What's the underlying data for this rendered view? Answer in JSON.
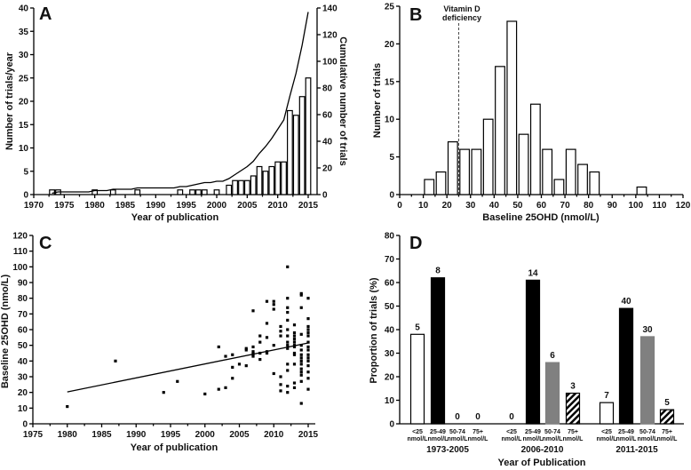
{
  "chart_data": [
    {
      "panel": "A",
      "type": "bar+line",
      "xlabel": "Year of publication",
      "ylabel": "Number of trials/year",
      "y2label": "Cumulative number of trials",
      "xlim": [
        1970,
        2016
      ],
      "xticks": [
        1970,
        1975,
        1980,
        1985,
        1990,
        1995,
        2000,
        2005,
        2010,
        2015
      ],
      "ylim": [
        0,
        40
      ],
      "yticks": [
        0,
        5,
        10,
        15,
        20,
        25,
        30,
        35,
        40
      ],
      "y2lim": [
        0,
        140
      ],
      "y2ticks": [
        0,
        20,
        40,
        60,
        80,
        100,
        120,
        140
      ],
      "bars": {
        "x": [
          1973,
          1974,
          1980,
          1983,
          1987,
          1994,
          1996,
          1997,
          1998,
          2000,
          2002,
          2003,
          2004,
          2005,
          2006,
          2007,
          2008,
          2009,
          2010,
          2011,
          2012,
          2013,
          2014,
          2015
        ],
        "values": [
          1,
          1,
          1,
          1,
          1,
          1,
          1,
          1,
          1,
          1,
          2,
          3,
          3,
          3,
          4,
          6,
          5,
          6,
          7,
          7,
          18,
          17,
          21,
          25
        ]
      },
      "line": "cumulative of bars"
    },
    {
      "panel": "B",
      "type": "bar",
      "xlabel": "Baseline 25OHD (nmol/L)",
      "ylabel": "Number of trials",
      "xlim": [
        0,
        120
      ],
      "xticks": [
        0,
        10,
        20,
        30,
        40,
        50,
        60,
        70,
        80,
        90,
        100,
        110,
        120
      ],
      "ylim": [
        0,
        25
      ],
      "yticks": [
        0,
        5,
        10,
        15,
        20,
        25
      ],
      "bin_width": 5,
      "bin_starts": [
        10,
        15,
        20,
        25,
        30,
        35,
        40,
        45,
        50,
        55,
        60,
        65,
        70,
        75,
        80,
        100
      ],
      "values": [
        2,
        3,
        7,
        6,
        6,
        10,
        17,
        23,
        8,
        12,
        6,
        2,
        6,
        4,
        3,
        1
      ],
      "reference_line": {
        "x": 25,
        "label_lines": [
          "Vitamin D",
          "deficiency"
        ]
      }
    },
    {
      "panel": "C",
      "type": "scatter",
      "xlabel": "Year of publication",
      "ylabel": "Baseline 25OHD (nmo/L)",
      "xlim": [
        1975,
        2016
      ],
      "xticks": [
        1975,
        1980,
        1985,
        1990,
        1995,
        2000,
        2005,
        2010,
        2015
      ],
      "ylim": [
        0,
        120
      ],
      "yticks": [
        0,
        10,
        20,
        30,
        40,
        50,
        60,
        70,
        80,
        90,
        100,
        110,
        120
      ],
      "points": [
        [
          1980,
          [
            11
          ]
        ],
        [
          1987,
          [
            40
          ]
        ],
        [
          1994,
          [
            20
          ]
        ],
        [
          1996,
          [
            27
          ]
        ],
        [
          2000,
          [
            19
          ]
        ],
        [
          2002,
          [
            49,
            22
          ]
        ],
        [
          2003,
          [
            43,
            23
          ]
        ],
        [
          2004,
          [
            44,
            36,
            29
          ]
        ],
        [
          2005,
          [
            38
          ]
        ],
        [
          2006,
          [
            48,
            47,
            37
          ]
        ],
        [
          2007,
          [
            72,
            49,
            46,
            45,
            44,
            43
          ]
        ],
        [
          2008,
          [
            56,
            52,
            45,
            41
          ]
        ],
        [
          2009,
          [
            78,
            64,
            55,
            46,
            45
          ]
        ],
        [
          2010,
          [
            78,
            76,
            73,
            50,
            32
          ]
        ],
        [
          2011,
          [
            62,
            59,
            56,
            30,
            25,
            21
          ]
        ],
        [
          2012,
          [
            100,
            80,
            74,
            71,
            66,
            60,
            56,
            52,
            50,
            48,
            38,
            34,
            24,
            20
          ]
        ],
        [
          2013,
          [
            63,
            58,
            56,
            54,
            52,
            50,
            49,
            45,
            44,
            38,
            26,
            23
          ]
        ],
        [
          2014,
          [
            83,
            82,
            74,
            57,
            50,
            47,
            44,
            42,
            40,
            38,
            35,
            33,
            31,
            27,
            13
          ]
        ],
        [
          2015,
          [
            80,
            67,
            62,
            60,
            58,
            56,
            52,
            49,
            47,
            44,
            42,
            40,
            37,
            33,
            29,
            22
          ]
        ]
      ],
      "regression": {
        "x": [
          1980,
          2015
        ],
        "y": [
          20.3,
          51.5
        ]
      }
    },
    {
      "panel": "D",
      "type": "bar",
      "xlabel": "Year of  Publication",
      "ylabel": "Proportion of trials (%)",
      "ylim": [
        0,
        80
      ],
      "yticks": [
        0,
        10,
        20,
        30,
        40,
        50,
        60,
        70,
        80
      ],
      "categories": [
        [
          "<25",
          "nmol/L"
        ],
        [
          "25-49",
          "nmol/L"
        ],
        [
          "50-74",
          "nmol/L"
        ],
        [
          "75+",
          "nmol/L"
        ]
      ],
      "category_styles": [
        "white",
        "black",
        "gray",
        "hatched"
      ],
      "colors": {
        "white": "#ffffff",
        "black": "#000000",
        "gray": "#808080"
      },
      "groups": [
        {
          "label": "1973-2005",
          "values": [
            38,
            62,
            0,
            0
          ],
          "counts": [
            "5",
            "8",
            "0",
            "0"
          ]
        },
        {
          "label": "2006-2010",
          "values": [
            0,
            61,
            26,
            13
          ],
          "counts": [
            "0",
            "14",
            "6",
            "3"
          ]
        },
        {
          "label": "2011-2015",
          "values": [
            9,
            49,
            37,
            6
          ],
          "counts": [
            "7",
            "40",
            "30",
            "5"
          ]
        }
      ]
    }
  ]
}
